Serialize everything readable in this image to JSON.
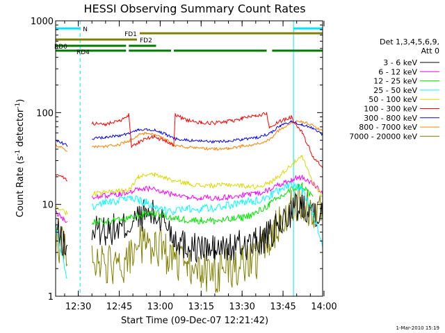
{
  "chart_data": {
    "type": "line",
    "title": "HESSI Observing Summary Count Rates",
    "xlabel": "Start Time (09-Dec-07 12:21:42)",
    "ylabel_main": "Count Rate (s",
    "ylabel_sup1": "-1",
    "ylabel_mid": " detector",
    "ylabel_sup2": "-1",
    "ylabel_end": ")",
    "y_scale": "log",
    "ylim": [
      1,
      1000
    ],
    "xlim": [
      "12:21:42",
      "13:59:30"
    ],
    "x_ticks": [
      "12:30",
      "12:45",
      "13:00",
      "13:15",
      "13:30",
      "13:45",
      "14:00"
    ],
    "y_ticks": [
      "1",
      "10",
      "100",
      "1000"
    ],
    "legend_header": [
      "Det 1,3,4,5,6,9,",
      "Att 0"
    ],
    "legend_position": "right",
    "footer": "1-Mar-2010 15:19",
    "night_intervals": [
      [
        "12:21:42",
        "12:30:40"
      ],
      [
        "13:48:50",
        "13:59:30"
      ]
    ],
    "flag_bars": [
      {
        "label": "N",
        "color": "#00e5ff",
        "intervals": [
          [
            "12:21:42",
            "12:30:40"
          ],
          [
            "13:48:50",
            "13:59:30"
          ]
        ]
      },
      {
        "label": "FD1",
        "color": "#808000",
        "intervals": [
          [
            "12:52:30",
            "13:59:30"
          ]
        ]
      },
      {
        "label": "FD2",
        "color": "#808000",
        "intervals": [
          [
            "12:21:42",
            "12:51:30"
          ]
        ]
      },
      {
        "label": "RD0",
        "color": "#007a00",
        "intervals": [
          [
            "12:21:42",
            "12:47:30"
          ],
          [
            "12:48:30",
            "12:58:30"
          ]
        ]
      },
      {
        "label": "RD4",
        "color": "#007a00",
        "intervals": [
          [
            "12:21:42",
            "12:47:30"
          ],
          [
            "12:48:30",
            "13:04:00"
          ],
          [
            "13:05:00",
            "13:39:00"
          ],
          [
            "13:41:00",
            "13:59:30"
          ]
        ]
      }
    ],
    "series": [
      {
        "name": "3 - 6 keV",
        "color": "#000000",
        "t": [
          "12:21:42",
          "12:26:00",
          "12:28:00",
          "12:30:40",
          "12:35:00",
          "12:40:00",
          "12:45:00",
          "12:49:00",
          "12:52:00",
          "12:55:00",
          "12:58:00",
          "13:02:00",
          "13:05:00",
          "13:10:00",
          "13:15:00",
          "13:20:00",
          "13:25:00",
          "13:30:00",
          "13:35:00",
          "13:40:00",
          "13:44:00",
          "13:48:00",
          "13:52:00",
          "13:56:00",
          "13:59:30"
        ],
        "values": [
          5.5,
          3.0,
          null,
          null,
          5.2,
          5.3,
          5.4,
          6.0,
          7.0,
          8.0,
          7.5,
          6.5,
          4.5,
          3.5,
          3.3,
          3.2,
          3.3,
          3.6,
          3.8,
          4.5,
          6.0,
          8.5,
          10.0,
          9.0,
          7.5
        ]
      },
      {
        "name": "6 - 12 keV",
        "color": "#ff00ff",
        "t": [
          "12:21:42",
          "12:26:00",
          "12:28:00",
          "12:30:40",
          "12:35:00",
          "12:40:00",
          "12:45:00",
          "12:49:00",
          "12:52:00",
          "12:55:00",
          "12:58:00",
          "13:02:00",
          "13:05:00",
          "13:10:00",
          "13:15:00",
          "13:20:00",
          "13:25:00",
          "13:30:00",
          "13:35:00",
          "13:40:00",
          "13:44:00",
          "13:48:00",
          "13:52:00",
          "13:56:00",
          "13:59:30"
        ],
        "values": [
          8.0,
          6.5,
          null,
          null,
          12.0,
          12.5,
          13.0,
          13.8,
          14.5,
          15.0,
          14.5,
          13.5,
          12.5,
          12.0,
          11.8,
          11.7,
          12.0,
          12.5,
          13.0,
          14.5,
          16.5,
          18.5,
          20.0,
          17.0,
          13.5
        ]
      },
      {
        "name": "12 - 25 keV",
        "color": "#00e600",
        "t": [
          "12:21:42",
          "12:26:00",
          "12:28:00",
          "12:30:40",
          "12:35:00",
          "12:40:00",
          "12:45:00",
          "12:49:00",
          "12:52:00",
          "12:55:00",
          "12:58:00",
          "13:02:00",
          "13:05:00",
          "13:10:00",
          "13:15:00",
          "13:20:00",
          "13:25:00",
          "13:30:00",
          "13:35:00",
          "13:40:00",
          "13:44:00",
          "13:48:00",
          "13:52:00",
          "13:56:00",
          "13:59:30"
        ],
        "values": [
          null,
          null,
          null,
          null,
          6.3,
          6.5,
          6.7,
          7.0,
          7.5,
          8.0,
          8.0,
          7.5,
          7.0,
          6.8,
          6.7,
          6.6,
          6.8,
          7.2,
          8.0,
          10.0,
          12.0,
          14.5,
          16.0,
          12.0,
          null
        ]
      },
      {
        "name": "25 - 50 keV",
        "color": "#00ffff",
        "t": [
          "12:21:42",
          "12:26:00",
          "12:28:00",
          "12:30:40",
          "12:35:00",
          "12:40:00",
          "12:45:00",
          "12:49:00",
          "12:52:00",
          "12:55:00",
          "12:58:00",
          "13:02:00",
          "13:05:00",
          "13:10:00",
          "13:15:00",
          "13:20:00",
          "13:25:00",
          "13:30:00",
          "13:35:00",
          "13:40:00",
          "13:44:00",
          "13:48:00",
          "13:52:00",
          "13:56:00",
          "13:59:30"
        ],
        "values": [
          6.0,
          1.5,
          null,
          null,
          9.5,
          10.5,
          11.0,
          11.5,
          11.2,
          10.5,
          9.5,
          8.5,
          8.5,
          8.8,
          9.0,
          9.2,
          9.8,
          10.5,
          11.0,
          12.5,
          14.5,
          17.0,
          14.0,
          8.0,
          3.5
        ]
      },
      {
        "name": "50 - 100 keV",
        "color": "#d9d900",
        "t": [
          "12:21:42",
          "12:26:00",
          "12:28:00",
          "12:30:40",
          "12:35:00",
          "12:40:00",
          "12:45:00",
          "12:49:00",
          "12:52:00",
          "12:55:00",
          "12:58:00",
          "13:02:00",
          "13:05:00",
          "13:10:00",
          "13:15:00",
          "13:20:00",
          "13:25:00",
          "13:30:00",
          "13:35:00",
          "13:40:00",
          "13:44:00",
          "13:48:00",
          "13:52:00",
          "13:56:00",
          "13:59:30"
        ],
        "values": [
          9.5,
          8.0,
          null,
          null,
          13.0,
          13.5,
          14.0,
          14.5,
          20.0,
          21.0,
          21.0,
          19.5,
          18.0,
          17.0,
          16.0,
          16.0,
          16.5,
          16.0,
          15.5,
          17.0,
          21.0,
          27.0,
          33.0,
          17.0,
          12.5
        ]
      },
      {
        "name": "100 - 300 keV",
        "color": "#ff0000",
        "t": [
          "12:21:42",
          "12:26:00",
          "12:28:00",
          "12:30:40",
          "12:35:00",
          "12:40:00",
          "12:45:00",
          "12:48:30",
          "12:49:30",
          "12:52:00",
          "12:55:00",
          "12:58:00",
          "13:02:00",
          "13:05:00",
          "13:05:30",
          "13:10:00",
          "13:15:00",
          "13:20:00",
          "13:25:00",
          "13:30:00",
          "13:35:00",
          "13:39:00",
          "13:40:00",
          "13:44:00",
          "13:48:00",
          "13:52:00",
          "13:56:00",
          "13:59:30"
        ],
        "values": [
          22.0,
          18.0,
          null,
          null,
          76.0,
          75.0,
          80.0,
          95.0,
          42.0,
          48.0,
          52.0,
          55.0,
          48.0,
          44.0,
          95.0,
          82.0,
          78.0,
          77.0,
          80.0,
          86.0,
          92.0,
          98.0,
          70.0,
          80.0,
          90.0,
          60.0,
          33.0,
          25.0
        ]
      },
      {
        "name": "300 - 800 keV",
        "color": "#0000ff",
        "t": [
          "12:21:42",
          "12:26:00",
          "12:28:00",
          "12:30:40",
          "12:35:00",
          "12:40:00",
          "12:45:00",
          "12:49:00",
          "12:52:00",
          "12:55:00",
          "12:58:00",
          "13:02:00",
          "13:05:00",
          "13:10:00",
          "13:15:00",
          "13:20:00",
          "13:25:00",
          "13:30:00",
          "13:35:00",
          "13:40:00",
          "13:44:00",
          "13:48:00",
          "13:52:00",
          "13:56:00",
          "13:59:30"
        ],
        "values": [
          50.0,
          44.0,
          null,
          null,
          52.0,
          54.0,
          56.0,
          60.0,
          65.0,
          66.0,
          65.0,
          58.0,
          52.0,
          50.0,
          49.0,
          48.0,
          49.0,
          51.0,
          53.0,
          59.0,
          72.0,
          80.0,
          74.0,
          68.0,
          58.0
        ]
      },
      {
        "name": "800 - 7000 keV",
        "color": "#ff8000",
        "t": [
          "12:21:42",
          "12:26:00",
          "12:28:00",
          "12:30:40",
          "12:35:00",
          "12:40:00",
          "12:45:00",
          "12:49:00",
          "12:52:00",
          "12:55:00",
          "12:58:00",
          "13:02:00",
          "13:05:00",
          "13:10:00",
          "13:15:00",
          "13:20:00",
          "13:25:00",
          "13:30:00",
          "13:35:00",
          "13:40:00",
          "13:44:00",
          "13:48:00",
          "13:52:00",
          "13:56:00",
          "13:59:30"
        ],
        "values": [
          45.0,
          38.0,
          null,
          null,
          42.0,
          43.0,
          45.0,
          50.0,
          57.0,
          60.0,
          58.0,
          51.0,
          44.0,
          42.0,
          41.0,
          40.0,
          41.0,
          43.0,
          45.0,
          51.0,
          66.0,
          78.0,
          80.0,
          72.0,
          63.0
        ]
      },
      {
        "name": "7000 - 20000 keV",
        "color": "#808000",
        "t": [
          "12:21:42",
          "12:26:00",
          "12:28:00",
          "12:30:40",
          "12:35:00",
          "12:40:00",
          "12:45:00",
          "12:49:00",
          "12:52:00",
          "12:55:00",
          "12:58:00",
          "13:02:00",
          "13:05:00",
          "13:10:00",
          "13:15:00",
          "13:20:00",
          "13:25:00",
          "13:30:00",
          "13:35:00",
          "13:40:00",
          "13:44:00",
          "13:48:00",
          "13:52:00",
          "13:56:00",
          "13:59:30"
        ],
        "values": [
          4.0,
          3.0,
          null,
          null,
          2.5,
          2.2,
          2.0,
          2.5,
          3.5,
          4.0,
          3.5,
          3.0,
          2.3,
          2.0,
          1.8,
          1.8,
          2.0,
          2.2,
          2.5,
          4.0,
          7.0,
          10.0,
          11.0,
          9.0,
          7.5
        ]
      }
    ]
  }
}
